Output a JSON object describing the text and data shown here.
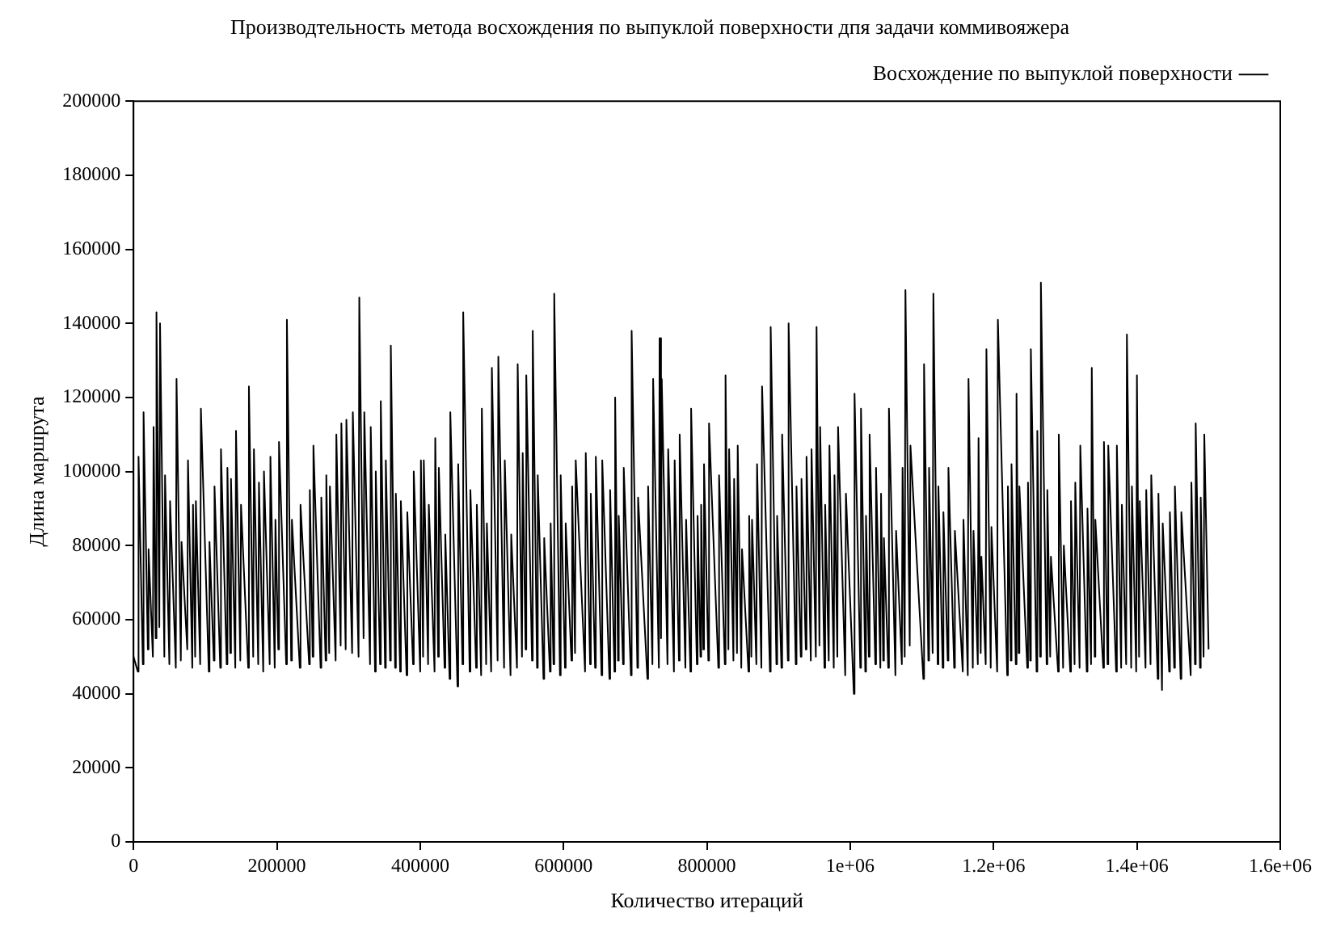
{
  "chart_data": {
    "type": "line",
    "title": "Производтельность метода восхождения по выпуклой поверхности дпя задачи коммивояжера",
    "xlabel": "Количество итераций",
    "ylabel": "Длина маршрута",
    "legend": "top right",
    "grid": false,
    "marker": "none",
    "line_style": "solid",
    "xlim": [
      0,
      1600000
    ],
    "xticks": [
      0,
      200000,
      400000,
      600000,
      800000,
      {
        "value": 1000000,
        "label": "1e+06"
      },
      {
        "value": 1200000,
        "label": "1.2e+06"
      },
      {
        "value": 1400000,
        "label": "1.4e+06"
      },
      {
        "value": 1600000,
        "label": "1.6e+06"
      }
    ],
    "ylim": [
      0,
      200000
    ],
    "yticks": [
      0,
      20000,
      40000,
      60000,
      80000,
      100000,
      120000,
      140000,
      160000,
      180000,
      200000
    ],
    "series": [
      {
        "name": "Восхождение по выпуклой поверхности",
        "color": "#000000",
        "x": [
          0,
          6000,
          7000,
          13000,
          14000,
          20000,
          21000,
          27000,
          28000,
          31000,
          32000,
          36000,
          37000,
          43000,
          44000,
          50000,
          51000,
          59000,
          60000,
          66000,
          67000,
          75000,
          76000,
          82000,
          83000,
          86000,
          87000,
          93000,
          94000,
          105000,
          106000,
          112000,
          113000,
          121000,
          122000,
          130000,
          131000,
          135000,
          136000,
          142000,
          143000,
          149000,
          150000,
          160000,
          161000,
          167000,
          168000,
          174000,
          175000,
          181000,
          182000,
          190000,
          191000,
          197000,
          198000,
          202000,
          203000,
          213000,
          214000,
          220000,
          221000,
          232000,
          233000,
          245000,
          246000,
          250000,
          251000,
          261000,
          262000,
          268000,
          269000,
          273000,
          274000,
          282000,
          283000,
          289000,
          290000,
          296000,
          297000,
          305000,
          306000,
          314000,
          315000,
          321000,
          322000,
          330000,
          331000,
          337000,
          338000,
          344000,
          345000,
          351000,
          352000,
          358000,
          359000,
          365000,
          366000,
          372000,
          373000,
          381000,
          382000,
          390000,
          391000,
          400000,
          401000,
          404000,
          405000,
          411000,
          412000,
          420000,
          421000,
          425000,
          426000,
          434000,
          435000,
          441000,
          442000,
          452000,
          453000,
          459000,
          460000,
          469000,
          470000,
          478000,
          479000,
          485000,
          486000,
          492000,
          493000,
          499000,
          500000,
          508000,
          509000,
          517000,
          518000,
          526000,
          527000,
          535000,
          536000,
          542000,
          543000,
          547000,
          548000,
          556000,
          557000,
          563000,
          564000,
          572000,
          573000,
          581000,
          582000,
          586000,
          587000,
          595000,
          596000,
          602000,
          603000,
          611000,
          612000,
          616000,
          617000,
          630000,
          631000,
          637000,
          638000,
          644000,
          645000,
          653000,
          654000,
          664000,
          665000,
          671000,
          672000,
          676000,
          677000,
          683000,
          684000,
          694000,
          695000,
          703000,
          704000,
          717000,
          718000,
          724000,
          725000,
          733000,
          734000,
          736000,
          737000,
          745000,
          746000,
          754000,
          755000,
          761000,
          762000,
          770000,
          771000,
          777000,
          778000,
          786000,
          787000,
          791000,
          792000,
          795000,
          796000,
          802000,
          803000,
          816000,
          817000,
          825000,
          826000,
          830000,
          831000,
          837000,
          838000,
          842000,
          843000,
          848000,
          849000,
          858000,
          859000,
          862000,
          863000,
          869000,
          870000,
          876000,
          877000,
          888000,
          889000,
          897000,
          898000,
          904000,
          905000,
          913000,
          914000,
          924000,
          925000,
          931000,
          932000,
          938000,
          939000,
          945000,
          946000,
          952000,
          953000,
          957000,
          958000,
          964000,
          965000,
          970000,
          971000,
          977000,
          978000,
          982000,
          983000,
          993000,
          994000,
          1005000,
          1006000,
          1014000,
          1015000,
          1021000,
          1022000,
          1026000,
          1027000,
          1035000,
          1036000,
          1042000,
          1043000,
          1046000,
          1047000,
          1053000,
          1054000,
          1063000,
          1064000,
          1072000,
          1073000,
          1076000,
          1077000,
          1083000,
          1084000,
          1102000,
          1103000,
          1109000,
          1110000,
          1115000,
          1116000,
          1122000,
          1123000,
          1129000,
          1130000,
          1136000,
          1137000,
          1145000,
          1146000,
          1157000,
          1158000,
          1164000,
          1165000,
          1171000,
          1172000,
          1178000,
          1179000,
          1182000,
          1183000,
          1189000,
          1190000,
          1196000,
          1197000,
          1205000,
          1206000,
          1219000,
          1220000,
          1224000,
          1225000,
          1231000,
          1232000,
          1235000,
          1236000,
          1247000,
          1248000,
          1251000,
          1252000,
          1260000,
          1261000,
          1265000,
          1266000,
          1274000,
          1275000,
          1279000,
          1280000,
          1290000,
          1291000,
          1297000,
          1298000,
          1307000,
          1308000,
          1313000,
          1314000,
          1320000,
          1321000,
          1330000,
          1331000,
          1336000,
          1337000,
          1341000,
          1342000,
          1353000,
          1354000,
          1359000,
          1360000,
          1371000,
          1372000,
          1378000,
          1379000,
          1385000,
          1386000,
          1392000,
          1393000,
          1399000,
          1400000,
          1403000,
          1404000,
          1412000,
          1413000,
          1419000,
          1420000,
          1429000,
          1430000,
          1435000,
          1436000,
          1445000,
          1446000,
          1452000,
          1453000,
          1461000,
          1462000,
          1475000,
          1476000,
          1481000,
          1482000,
          1488000,
          1489000,
          1493000,
          1494000,
          1500000
        ],
        "values": [
          50000,
          46000,
          104000,
          48000,
          116000,
          52000,
          79000,
          50000,
          112000,
          55000,
          143000,
          58000,
          140000,
          50000,
          99000,
          48000,
          92000,
          47000,
          125000,
          49000,
          81000,
          52000,
          103000,
          47000,
          91000,
          50000,
          92000,
          48000,
          117000,
          46000,
          81000,
          49000,
          96000,
          47000,
          106000,
          48000,
          101000,
          51000,
          98000,
          47000,
          111000,
          49000,
          91000,
          47000,
          123000,
          50000,
          106000,
          48000,
          97000,
          46000,
          100000,
          48000,
          104000,
          47000,
          87000,
          52000,
          108000,
          48000,
          141000,
          49000,
          87000,
          47000,
          91000,
          48000,
          95000,
          50000,
          107000,
          47000,
          93000,
          49000,
          99000,
          51000,
          96000,
          49000,
          110000,
          53000,
          113000,
          52000,
          114000,
          51000,
          116000,
          50000,
          147000,
          55000,
          116000,
          48000,
          112000,
          46000,
          100000,
          48000,
          119000,
          47000,
          103000,
          49000,
          134000,
          47000,
          94000,
          46000,
          92000,
          45000,
          89000,
          48000,
          100000,
          46000,
          103000,
          50000,
          103000,
          48000,
          91000,
          46000,
          109000,
          50000,
          101000,
          47000,
          83000,
          44000,
          116000,
          42000,
          102000,
          48000,
          143000,
          46000,
          95000,
          47000,
          91000,
          45000,
          117000,
          48000,
          86000,
          46000,
          128000,
          49000,
          131000,
          47000,
          103000,
          45000,
          83000,
          47000,
          129000,
          50000,
          105000,
          52000,
          126000,
          49000,
          138000,
          47000,
          99000,
          44000,
          82000,
          46000,
          86000,
          48000,
          148000,
          45000,
          99000,
          47000,
          86000,
          49000,
          96000,
          51000,
          103000,
          46000,
          105000,
          48000,
          94000,
          47000,
          104000,
          45000,
          103000,
          44000,
          95000,
          46000,
          120000,
          49000,
          88000,
          48000,
          101000,
          45000,
          138000,
          47000,
          93000,
          44000,
          96000,
          48000,
          125000,
          47000,
          136000,
          55000,
          125000,
          48000,
          106000,
          46000,
          103000,
          49000,
          110000,
          47000,
          87000,
          46000,
          117000,
          48000,
          88000,
          50000,
          91000,
          52000,
          102000,
          49000,
          113000,
          47000,
          99000,
          48000,
          126000,
          52000,
          106000,
          49000,
          98000,
          51000,
          107000,
          47000,
          79000,
          46000,
          88000,
          50000,
          87000,
          48000,
          102000,
          47000,
          123000,
          46000,
          139000,
          48000,
          88000,
          47000,
          110000,
          49000,
          140000,
          48000,
          96000,
          50000,
          98000,
          52000,
          104000,
          49000,
          106000,
          50000,
          139000,
          53000,
          112000,
          47000,
          91000,
          49000,
          107000,
          47000,
          99000,
          50000,
          112000,
          45000,
          94000,
          40000,
          121000,
          47000,
          117000,
          46000,
          88000,
          50000,
          110000,
          48000,
          101000,
          47000,
          94000,
          49000,
          82000,
          47000,
          117000,
          45000,
          84000,
          48000,
          101000,
          50000,
          149000,
          53000,
          107000,
          44000,
          129000,
          49000,
          101000,
          51000,
          148000,
          48000,
          96000,
          47000,
          89000,
          49000,
          101000,
          47000,
          84000,
          46000,
          87000,
          45000,
          125000,
          47000,
          84000,
          48000,
          109000,
          51000,
          77000,
          48000,
          133000,
          47000,
          85000,
          46000,
          141000,
          45000,
          96000,
          49000,
          102000,
          48000,
          121000,
          51000,
          96000,
          47000,
          97000,
          49000,
          133000,
          46000,
          111000,
          50000,
          151000,
          48000,
          95000,
          50000,
          77000,
          46000,
          110000,
          47000,
          80000,
          46000,
          92000,
          48000,
          97000,
          47000,
          107000,
          46000,
          90000,
          48000,
          128000,
          50000,
          87000,
          47000,
          108000,
          48000,
          107000,
          46000,
          107000,
          47000,
          91000,
          48000,
          137000,
          47000,
          96000,
          46000,
          126000,
          50000,
          92000,
          47000,
          95000,
          48000,
          99000,
          44000,
          94000,
          41000,
          86000,
          46000,
          89000,
          47000,
          96000,
          44000,
          89000,
          45000,
          97000,
          48000,
          113000,
          47000,
          93000,
          50000,
          110000,
          52000
        ]
      }
    ]
  }
}
